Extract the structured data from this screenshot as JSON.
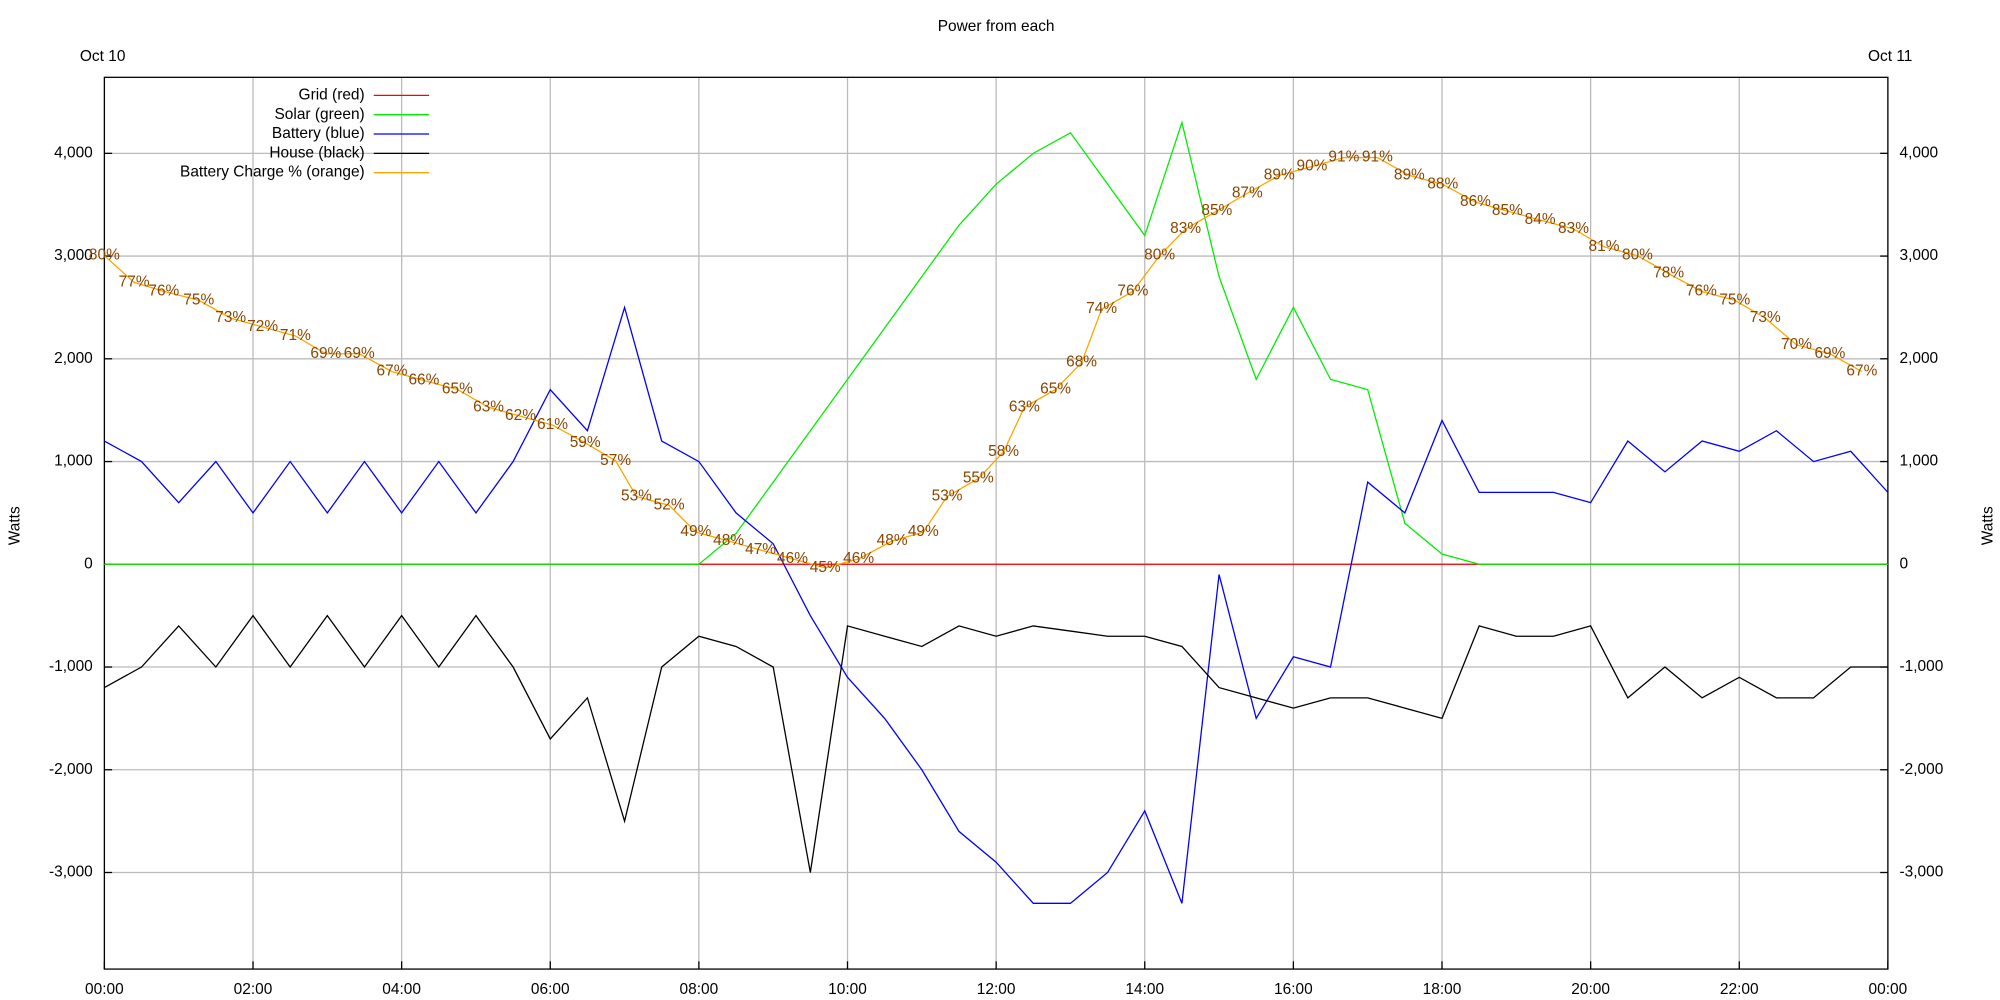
{
  "chart_data": {
    "type": "line",
    "title": "Power from each",
    "date_labels": [
      "Oct 10",
      "Oct 11"
    ],
    "y_label": "Watts",
    "y2_label": "Watts",
    "x": [
      0,
      0.5,
      1,
      1.5,
      2,
      2.5,
      3,
      3.5,
      4,
      4.5,
      5,
      5.5,
      6,
      6.5,
      7,
      7.5,
      8,
      8.5,
      9,
      9.5,
      10,
      10.5,
      11,
      11.5,
      12,
      12.5,
      13,
      13.5,
      14,
      14.5,
      15,
      15.5,
      16,
      16.5,
      17,
      17.5,
      18,
      18.5,
      19,
      19.5,
      20,
      20.5,
      21,
      21.5,
      22,
      22.5,
      23,
      23.5,
      24
    ],
    "xlim": [
      0,
      24
    ],
    "xticks": [
      {
        "value": 0,
        "label": "00:00"
      },
      {
        "value": 2,
        "label": "02:00"
      },
      {
        "value": 4,
        "label": "04:00"
      },
      {
        "value": 6,
        "label": "06:00"
      },
      {
        "value": 8,
        "label": "08:00"
      },
      {
        "value": 10,
        "label": "10:00"
      },
      {
        "value": 12,
        "label": "12:00"
      },
      {
        "value": 14,
        "label": "14:00"
      },
      {
        "value": 16,
        "label": "16:00"
      },
      {
        "value": 18,
        "label": "18:00"
      },
      {
        "value": 20,
        "label": "20:00"
      },
      {
        "value": 22,
        "label": "22:00"
      },
      {
        "value": 24,
        "label": "00:00"
      }
    ],
    "ylim": [
      -3940,
      4740
    ],
    "yticks": [
      {
        "value": -3000,
        "label": "-3,000"
      },
      {
        "value": -2000,
        "label": "-2,000"
      },
      {
        "value": -1000,
        "label": "-1,000"
      },
      0,
      {
        "value": 1000,
        "label": "1,000"
      },
      {
        "value": 2000,
        "label": "2,000"
      },
      {
        "value": 3000,
        "label": "3,000"
      },
      {
        "value": 4000,
        "label": "4,000"
      }
    ],
    "y2lim": [
      -3940,
      4740
    ],
    "y2ticks": [
      {
        "value": -3000,
        "label": "-3,000"
      },
      {
        "value": -2000,
        "label": "-2,000"
      },
      {
        "value": -1000,
        "label": "-1,000"
      },
      0,
      {
        "value": 1000,
        "label": "1,000"
      },
      {
        "value": 2000,
        "label": "2,000"
      },
      {
        "value": 3000,
        "label": "3,000"
      },
      {
        "value": 4000,
        "label": "4,000"
      }
    ],
    "grid": true,
    "legend": "top-left",
    "series": [
      {
        "name": "Grid (red)",
        "color": "#ff0000",
        "values": [
          0,
          0,
          0,
          0,
          0,
          0,
          0,
          0,
          0,
          0,
          0,
          0,
          0,
          0,
          0,
          0,
          0,
          0,
          0,
          0,
          0,
          0,
          0,
          0,
          0,
          0,
          0,
          0,
          0,
          0,
          0,
          0,
          0,
          0,
          0,
          0,
          0,
          0,
          0,
          0,
          0,
          0,
          0,
          0,
          0,
          0,
          0,
          0,
          0
        ]
      },
      {
        "name": "Solar (green)",
        "color": "#00ee00",
        "values": [
          0,
          0,
          0,
          0,
          0,
          0,
          0,
          0,
          0,
          0,
          0,
          0,
          0,
          0,
          0,
          0,
          0,
          300,
          800,
          1300,
          1800,
          2300,
          2800,
          3300,
          3700,
          4000,
          4200,
          3700,
          3200,
          4300,
          2800,
          1800,
          2500,
          1800,
          1700,
          400,
          100,
          0,
          0,
          0,
          0,
          0,
          0,
          0,
          0,
          0,
          0,
          0,
          0
        ]
      },
      {
        "name": "Battery (blue)",
        "color": "#0000ff",
        "values": [
          1200,
          1000,
          600,
          1000,
          500,
          1000,
          500,
          1000,
          500,
          1000,
          500,
          1000,
          1700,
          1300,
          2500,
          1200,
          1000,
          500,
          200,
          -500,
          -1100,
          -1500,
          -2000,
          -2600,
          -2900,
          -3300,
          -3300,
          -3000,
          -2400,
          -3300,
          -100,
          -1500,
          -900,
          -1000,
          800,
          500,
          1400,
          700,
          700,
          700,
          600,
          1200,
          900,
          1200,
          1100,
          1300,
          1000,
          1100,
          700
        ]
      },
      {
        "name": "House (black)",
        "color": "#000000",
        "values": [
          -1200,
          -1000,
          -600,
          -1000,
          -500,
          -1000,
          -500,
          -1000,
          -500,
          -1000,
          -500,
          -1000,
          -1700,
          -1300,
          -2500,
          -1000,
          -700,
          -800,
          -1000,
          -3000,
          -600,
          -700,
          -800,
          -600,
          -700,
          -600,
          -650,
          -700,
          -700,
          -800,
          -1200,
          -1300,
          -1400,
          -1300,
          -1300,
          -1400,
          -1500,
          -600,
          -700,
          -700,
          -600,
          -1300,
          -1000,
          -1300,
          -1100,
          -1300,
          -1300,
          -1000,
          -1000
        ]
      },
      {
        "name": "Battery Charge % (orange)",
        "color": "#ffa500",
        "label_color": "#8b4500",
        "axis": "charge",
        "charge_lim": [
          0,
          100
        ],
        "x": [
          0,
          0.4,
          0.8,
          1.27,
          1.7,
          2.13,
          2.57,
          2.98,
          3.43,
          3.87,
          4.3,
          4.75,
          5.17,
          5.6,
          6.03,
          6.47,
          6.88,
          7.16,
          7.6,
          7.96,
          8.4,
          8.83,
          9.26,
          9.7,
          10.15,
          10.6,
          11.02,
          11.34,
          11.76,
          12.1,
          12.38,
          12.8,
          13.15,
          13.42,
          13.84,
          14.2,
          14.55,
          14.97,
          15.38,
          15.81,
          16.25,
          16.68,
          17.13,
          17.56,
          18.01,
          18.45,
          18.88,
          19.32,
          19.77,
          20.18,
          20.63,
          21.05,
          21.49,
          21.94,
          22.35,
          22.77,
          23.22,
          23.65
        ],
        "values": [
          80,
          77,
          76,
          75,
          73,
          72,
          71,
          69,
          69,
          67,
          66,
          65,
          63,
          62,
          61,
          59,
          57,
          53,
          52,
          49,
          48,
          47,
          46,
          45,
          46,
          48,
          49,
          53,
          55,
          58,
          63,
          65,
          68,
          74,
          76,
          80,
          83,
          85,
          87,
          89,
          90,
          91,
          91,
          89,
          88,
          86,
          85,
          84,
          83,
          81,
          80,
          78,
          76,
          75,
          73,
          70,
          69,
          67
        ],
        "value_labels": [
          "80%",
          "77%",
          "76%",
          "75%",
          "73%",
          "72%",
          "71%",
          "69%",
          "69%",
          "67%",
          "66%",
          "65%",
          "63%",
          "62%",
          "61%",
          "59%",
          "57%",
          "53%",
          "52%",
          "49%",
          "48%",
          "47%",
          "46%",
          "45%",
          "46%",
          "48%",
          "49%",
          "53%",
          "55%",
          "58%",
          "63%",
          "65%",
          "68%",
          "74%",
          "76%",
          "80%",
          "83%",
          "85%",
          "87%",
          "89%",
          "90%",
          "91%",
          "91%",
          "89%",
          "88%",
          "86%",
          "85%",
          "84%",
          "83%",
          "81%",
          "80%",
          "78%",
          "76%",
          "75%",
          "73%",
          "70%",
          "69%",
          "67%"
        ]
      }
    ]
  }
}
